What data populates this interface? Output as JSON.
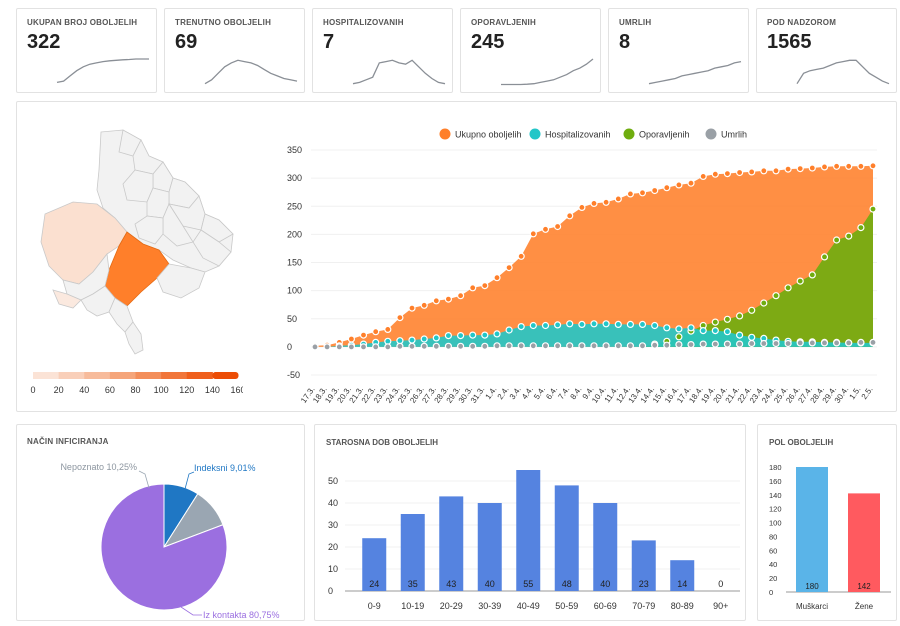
{
  "stats": [
    {
      "title": "UKUPAN BROJ OBOLJELIH",
      "value": "322"
    },
    {
      "title": "TRENUTNO OBOLJELIH",
      "value": "69"
    },
    {
      "title": "HOSPITALIZOVANIH",
      "value": "7"
    },
    {
      "title": "OPORAVLJENIH",
      "value": "245"
    },
    {
      "title": "UMRLIH",
      "value": "8"
    },
    {
      "title": "POD NADZOROM",
      "value": "1565"
    }
  ],
  "map_legend": {
    "ticks": [
      "0",
      "20",
      "40",
      "60",
      "80",
      "100",
      "120",
      "140",
      "160"
    ],
    "colors": [
      "#fbe3d6",
      "#f9cfb9",
      "#f7bb9b",
      "#f5a57a",
      "#f38e5a",
      "#f1763a",
      "#ef5f1c",
      "#ec4d05"
    ]
  },
  "infection": {
    "title": "NAČIN INFICIRANJA",
    "labels": [
      "Indeksni 9,01%",
      "Nepoznato 10,25%",
      "Iz kontakta 80,75%"
    ]
  },
  "colors": {
    "total": "#ff7f2a",
    "hosp": "#23c6c8",
    "recovered": "#6fad0f",
    "dead": "#9aa0a6",
    "bar": "#5583e0",
    "male": "#5ab4e8",
    "female": "#ff5a5f"
  },
  "chart_data": [
    {
      "type": "area",
      "legend": [
        "Ukupno oboljelih",
        "Hospitalizovanih",
        "Oporavljenih",
        "Umrlih"
      ],
      "legend_position": "top",
      "ylim": [
        -50,
        350
      ],
      "yticks": [
        "350",
        "300",
        "250",
        "200",
        "150",
        "100",
        "50",
        "0",
        "-50"
      ],
      "x": [
        "17.3.",
        "18.3.",
        "19.3.",
        "20.3.",
        "21.3.",
        "22.3.",
        "23.3.",
        "24.3.",
        "25.3.",
        "26.3.",
        "27.3.",
        "28.3.",
        "29.3.",
        "30.3.",
        "31.3.",
        "1.4.",
        "2.4.",
        "3.4.",
        "4.4.",
        "5.4.",
        "6.4.",
        "7.4.",
        "8.4.",
        "9.4.",
        "10.4.",
        "11.4.",
        "12.4.",
        "13.4.",
        "14.4.",
        "15.4.",
        "16.4.",
        "17.4.",
        "18.4.",
        "19.4.",
        "20.4.",
        "21.4.",
        "22.4.",
        "23.4.",
        "24.4.",
        "25.4.",
        "26.4.",
        "27.4.",
        "28.4.",
        "29.4.",
        "30.4.",
        "1.5.",
        "2.5."
      ],
      "series": [
        {
          "name": "Ukupno oboljelih",
          "values": [
            2,
            3,
            8,
            14,
            21,
            27,
            31,
            52,
            69,
            74,
            82,
            85,
            91,
            105,
            109,
            123,
            141,
            161,
            201,
            209,
            214,
            233,
            248,
            255,
            257,
            263,
            272,
            274,
            278,
            283,
            288,
            291,
            303,
            307,
            308,
            310,
            311,
            313,
            313,
            316,
            317,
            318,
            320,
            321,
            321,
            321,
            322
          ]
        },
        {
          "name": "Hospitalizovanih",
          "values": [
            0,
            0,
            2,
            3,
            5,
            8,
            10,
            11,
            12,
            14,
            16,
            20,
            20,
            21,
            21,
            23,
            30,
            36,
            38,
            38,
            39,
            41,
            40,
            41,
            41,
            40,
            40,
            40,
            38,
            34,
            32,
            34,
            29,
            29,
            27,
            21,
            17,
            15,
            12,
            10,
            9,
            9,
            8,
            8,
            7,
            7,
            7
          ]
        },
        {
          "name": "Oporavljenih",
          "values": [
            0,
            0,
            0,
            0,
            0,
            0,
            0,
            0,
            0,
            0,
            0,
            0,
            0,
            0,
            0,
            0,
            0,
            0,
            0,
            0,
            0,
            0,
            0,
            0,
            0,
            0,
            0,
            0,
            5,
            10,
            18,
            28,
            38,
            44,
            49,
            55,
            65,
            78,
            91,
            105,
            117,
            128,
            160,
            190,
            197,
            212,
            245
          ]
        },
        {
          "name": "Umrlih",
          "values": [
            0,
            0,
            0,
            0,
            0,
            0,
            0,
            1,
            1,
            1,
            1,
            1,
            1,
            1,
            1,
            2,
            2,
            2,
            2,
            2,
            2,
            2,
            2,
            2,
            2,
            2,
            2,
            2,
            3,
            3,
            4,
            4,
            5,
            5,
            5,
            5,
            6,
            6,
            6,
            6,
            7,
            7,
            7,
            7,
            7,
            8,
            8
          ]
        }
      ]
    },
    {
      "type": "bar",
      "title": "STAROSNA DOB OBOLJELIH",
      "categories": [
        "0-9",
        "10-19",
        "20-29",
        "30-39",
        "40-49",
        "50-59",
        "60-69",
        "70-79",
        "80-89",
        "90+"
      ],
      "values": [
        24,
        35,
        43,
        40,
        55,
        48,
        40,
        23,
        14,
        0
      ],
      "ylim": [
        0,
        55
      ],
      "yticks": [
        "50",
        "40",
        "30",
        "20",
        "10",
        "0"
      ]
    },
    {
      "type": "bar",
      "title": "POL OBOLJELIH",
      "categories": [
        "Muškarci",
        "Žene"
      ],
      "values": [
        180,
        142
      ],
      "ylim": [
        0,
        180
      ],
      "yticks": [
        "180",
        "160",
        "140",
        "120",
        "100",
        "80",
        "60",
        "40",
        "20",
        "0"
      ]
    },
    {
      "type": "pie",
      "labels": [
        "Indeksni",
        "Nepoznato",
        "Iz kontakta"
      ],
      "values": [
        9.01,
        10.25,
        80.75
      ],
      "colors": [
        "#1f77c4",
        "#9aa6b2",
        "#9b6fe0"
      ]
    }
  ]
}
